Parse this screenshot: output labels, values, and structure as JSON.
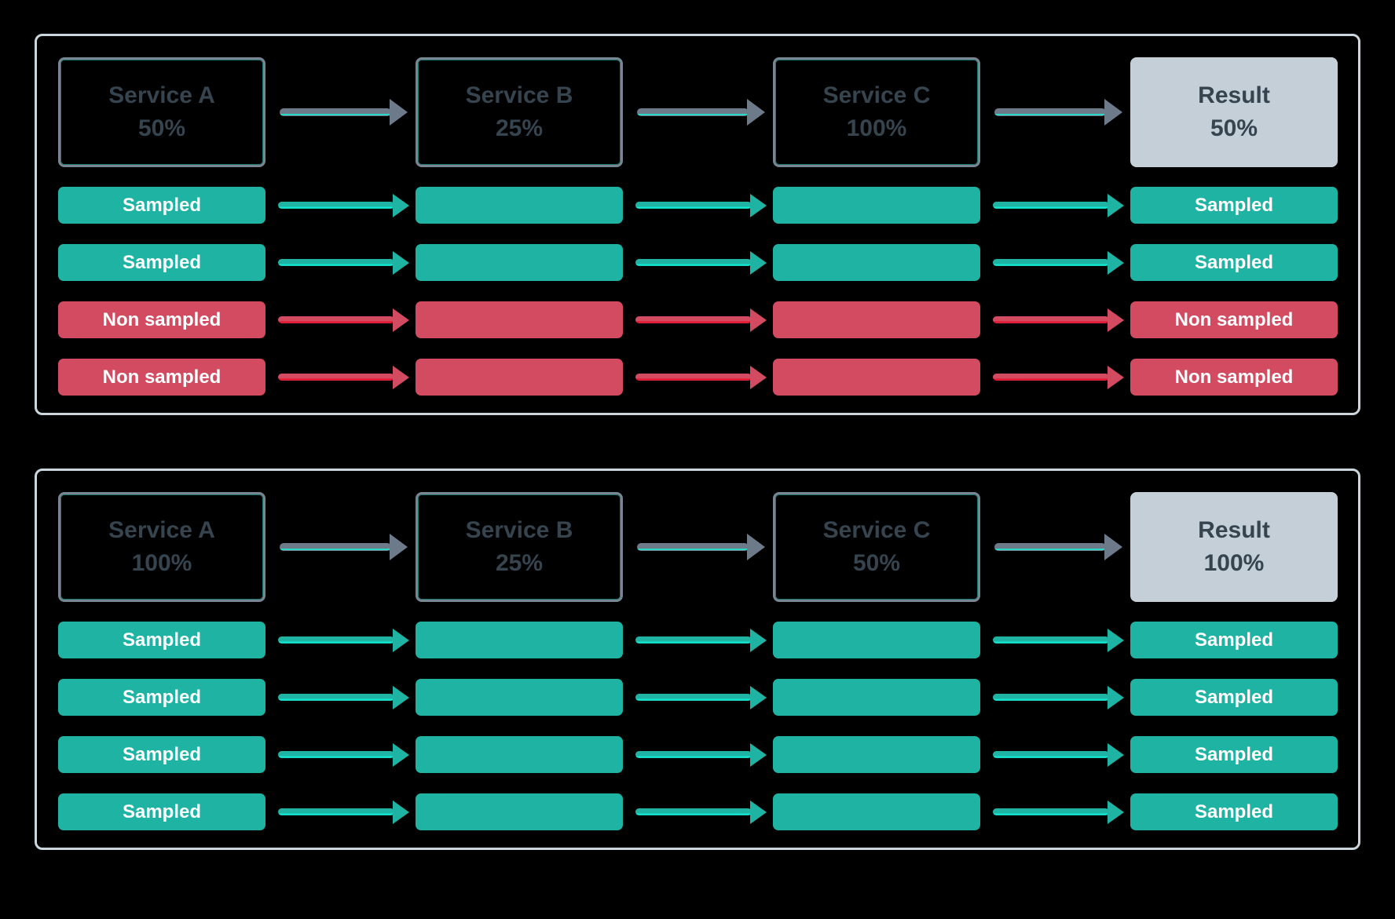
{
  "colors": {
    "background": "#000000",
    "panel_border": "#ccd6dd",
    "service_box_border": "#7a8594",
    "service_text": "#35444e",
    "teal_accent": "#2bd8c6",
    "sampled": "#1fb3a3",
    "sampled_bright": "#0fe8d2",
    "non_sampled": "#d24b60",
    "non_sampled_bright": "#ea0e28",
    "flow_arrow": "#6d7a89",
    "result_bg": "#c5cfd8"
  },
  "panels": [
    {
      "services": [
        {
          "name": "Service A",
          "rate": "50%"
        },
        {
          "name": "Service B",
          "rate": "25%"
        },
        {
          "name": "Service C",
          "rate": "100%"
        }
      ],
      "result": {
        "name": "Result",
        "rate": "50%"
      },
      "traces": [
        {
          "label": "Sampled",
          "status": "sampled"
        },
        {
          "label": "Sampled",
          "status": "sampled"
        },
        {
          "label": "Non sampled",
          "status": "non-sampled"
        },
        {
          "label": "Non sampled",
          "status": "non-sampled"
        }
      ]
    },
    {
      "services": [
        {
          "name": "Service A",
          "rate": "100%"
        },
        {
          "name": "Service B",
          "rate": "25%"
        },
        {
          "name": "Service C",
          "rate": "50%"
        }
      ],
      "result": {
        "name": "Result",
        "rate": "100%"
      },
      "traces": [
        {
          "label": "Sampled",
          "status": "sampled"
        },
        {
          "label": "Sampled",
          "status": "sampled"
        },
        {
          "label": "Sampled",
          "status": "sampled"
        },
        {
          "label": "Sampled",
          "status": "sampled"
        }
      ]
    }
  ]
}
